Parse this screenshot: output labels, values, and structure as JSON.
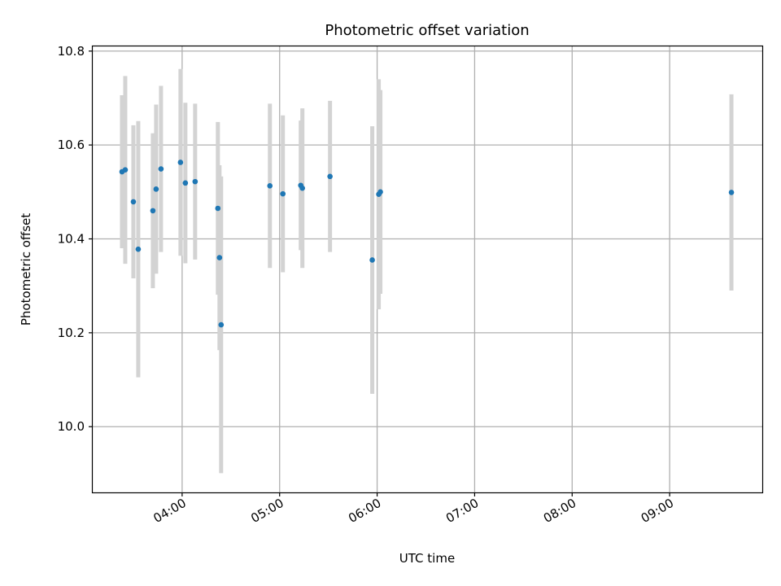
{
  "chart_data": {
    "type": "scatter",
    "title": "Photometric offset variation",
    "xlabel": "UTC time",
    "ylabel": "Photometric offset",
    "grid": true,
    "x_unit": "UTC time (HH:MM)",
    "xlim": [
      "03:05",
      "09:57"
    ],
    "ylim": [
      9.86,
      10.81
    ],
    "x_ticks": [
      "04:00",
      "05:00",
      "06:00",
      "07:00",
      "08:00",
      "09:00"
    ],
    "y_ticks": [
      10.0,
      10.2,
      10.4,
      10.6,
      10.8
    ],
    "y_tick_labels": [
      "10.0",
      "10.2",
      "10.4",
      "10.6",
      "10.8"
    ],
    "colors": {
      "point": "#1f77b4",
      "errorbar": "#d3d3d3",
      "grid": "#b0b0b0"
    },
    "points": [
      {
        "x": "03:23",
        "y": 10.543,
        "err": 0.163
      },
      {
        "x": "03:25",
        "y": 10.547,
        "err": 0.2
      },
      {
        "x": "03:30",
        "y": 10.479,
        "err": 0.163
      },
      {
        "x": "03:33",
        "y": 10.378,
        "err": 0.273
      },
      {
        "x": "03:42",
        "y": 10.46,
        "err": 0.165
      },
      {
        "x": "03:44",
        "y": 10.506,
        "err": 0.18
      },
      {
        "x": "03:47",
        "y": 10.549,
        "err": 0.177
      },
      {
        "x": "03:59",
        "y": 10.563,
        "err": 0.199
      },
      {
        "x": "04:02",
        "y": 10.519,
        "err": 0.171
      },
      {
        "x": "04:08",
        "y": 10.522,
        "err": 0.166
      },
      {
        "x": "04:22",
        "y": 10.465,
        "err": 0.184
      },
      {
        "x": "04:23",
        "y": 10.36,
        "err": 0.197
      },
      {
        "x": "04:24",
        "y": 10.217,
        "err": 0.316
      },
      {
        "x": "04:54",
        "y": 10.513,
        "err": 0.175
      },
      {
        "x": "05:02",
        "y": 10.496,
        "err": 0.167
      },
      {
        "x": "05:13",
        "y": 10.514,
        "err": 0.138
      },
      {
        "x": "05:14",
        "y": 10.508,
        "err": 0.17
      },
      {
        "x": "05:31",
        "y": 10.533,
        "err": 0.161
      },
      {
        "x": "05:57",
        "y": 10.355,
        "err": 0.285
      },
      {
        "x": "06:01",
        "y": 10.495,
        "err": 0.245
      },
      {
        "x": "06:02",
        "y": 10.5,
        "err": 0.217
      },
      {
        "x": "09:38",
        "y": 10.499,
        "err": 0.209
      }
    ]
  }
}
